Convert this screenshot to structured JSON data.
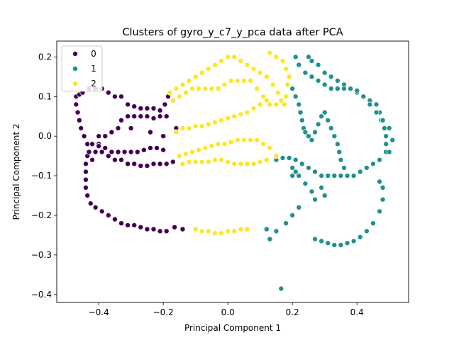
{
  "chart_data": {
    "type": "scatter",
    "title": "Clusters of gyro_y_c7_y_pca data after PCA",
    "xlabel": "Principal Component 1",
    "ylabel": "Principal Component 2",
    "xlim": [
      -0.53,
      0.56
    ],
    "ylim": [
      -0.42,
      0.24
    ],
    "xticks": [
      -0.4,
      -0.2,
      0.0,
      0.2,
      0.4
    ],
    "xtick_labels": [
      "−0.4",
      "−0.2",
      "0.0",
      "0.2",
      "0.4"
    ],
    "yticks": [
      -0.4,
      -0.3,
      -0.2,
      -0.1,
      0.0,
      0.1,
      0.2
    ],
    "ytick_labels": [
      "−0.4",
      "−0.3",
      "−0.2",
      "−0.1",
      "0.0",
      "0.1",
      "0.2"
    ],
    "grid": false,
    "legend_position": "top-left",
    "series": [
      {
        "name": "0",
        "color": "#440154",
        "points": [
          [
            -0.47,
            0.1
          ],
          [
            -0.47,
            0.08
          ],
          [
            -0.465,
            0.06
          ],
          [
            -0.46,
            0.04
          ],
          [
            -0.455,
            0.02
          ],
          [
            -0.445,
            0.0
          ],
          [
            -0.435,
            -0.02
          ],
          [
            -0.435,
            -0.05
          ],
          [
            -0.44,
            -0.07
          ],
          [
            -0.44,
            -0.09
          ],
          [
            -0.44,
            -0.11
          ],
          [
            -0.44,
            -0.13
          ],
          [
            -0.435,
            -0.15
          ],
          [
            -0.425,
            -0.17
          ],
          [
            -0.41,
            -0.18
          ],
          [
            -0.39,
            -0.19
          ],
          [
            -0.37,
            -0.2
          ],
          [
            -0.35,
            -0.21
          ],
          [
            -0.33,
            -0.22
          ],
          [
            -0.31,
            -0.225
          ],
          [
            -0.29,
            -0.225
          ],
          [
            -0.27,
            -0.23
          ],
          [
            -0.25,
            -0.235
          ],
          [
            -0.23,
            -0.235
          ],
          [
            -0.21,
            -0.24
          ],
          [
            -0.19,
            -0.24
          ],
          [
            -0.165,
            -0.23
          ],
          [
            -0.14,
            -0.235
          ],
          [
            -0.46,
            0.105
          ],
          [
            -0.45,
            0.11
          ],
          [
            -0.43,
            0.12
          ],
          [
            -0.41,
            0.12
          ],
          [
            -0.39,
            0.12
          ],
          [
            -0.37,
            0.11
          ],
          [
            -0.35,
            0.1
          ],
          [
            -0.33,
            0.1
          ],
          [
            -0.31,
            0.08
          ],
          [
            -0.29,
            0.075
          ],
          [
            -0.27,
            0.07
          ],
          [
            -0.25,
            0.07
          ],
          [
            -0.23,
            0.07
          ],
          [
            -0.21,
            0.065
          ],
          [
            -0.195,
            0.08
          ],
          [
            -0.185,
            0.1
          ],
          [
            -0.42,
            -0.02
          ],
          [
            -0.4,
            -0.02
          ],
          [
            -0.38,
            -0.03
          ],
          [
            -0.36,
            -0.04
          ],
          [
            -0.34,
            -0.04
          ],
          [
            -0.32,
            -0.04
          ],
          [
            -0.3,
            -0.04
          ],
          [
            -0.28,
            -0.04
          ],
          [
            -0.26,
            -0.035
          ],
          [
            -0.24,
            -0.03
          ],
          [
            -0.22,
            -0.03
          ],
          [
            -0.2,
            -0.035
          ],
          [
            -0.41,
            -0.04
          ],
          [
            -0.39,
            -0.04
          ],
          [
            -0.37,
            -0.05
          ],
          [
            -0.35,
            -0.06
          ],
          [
            -0.33,
            -0.06
          ],
          [
            -0.31,
            -0.07
          ],
          [
            -0.29,
            -0.07
          ],
          [
            -0.27,
            -0.075
          ],
          [
            -0.25,
            -0.075
          ],
          [
            -0.23,
            -0.07
          ],
          [
            -0.21,
            -0.07
          ],
          [
            -0.19,
            -0.07
          ],
          [
            -0.17,
            -0.065
          ],
          [
            -0.4,
            0.0
          ],
          [
            -0.38,
            0.0
          ],
          [
            -0.36,
            0.01
          ],
          [
            -0.34,
            0.02
          ],
          [
            -0.33,
            0.04
          ],
          [
            -0.31,
            0.05
          ],
          [
            -0.29,
            0.05
          ],
          [
            -0.27,
            0.05
          ],
          [
            -0.25,
            0.05
          ],
          [
            -0.23,
            0.045
          ],
          [
            -0.21,
            0.05
          ],
          [
            -0.19,
            0.05
          ],
          [
            -0.16,
            0.02
          ],
          [
            -0.2,
            0.0
          ],
          [
            -0.24,
            0.01
          ],
          [
            -0.3,
            0.02
          ],
          [
            -0.42,
            -0.06
          ],
          [
            -0.43,
            -0.04
          ],
          [
            -0.4,
            -0.025
          ]
        ]
      },
      {
        "name": "1",
        "color": "#21918c",
        "points": [
          [
            0.15,
            -0.06
          ],
          [
            0.17,
            -0.055
          ],
          [
            0.19,
            -0.055
          ],
          [
            0.21,
            -0.06
          ],
          [
            0.23,
            -0.07
          ],
          [
            0.25,
            -0.08
          ],
          [
            0.27,
            -0.09
          ],
          [
            0.29,
            -0.1
          ],
          [
            0.31,
            -0.1
          ],
          [
            0.33,
            -0.1
          ],
          [
            0.35,
            -0.1
          ],
          [
            0.37,
            -0.1
          ],
          [
            0.39,
            -0.1
          ],
          [
            0.41,
            -0.09
          ],
          [
            0.43,
            -0.08
          ],
          [
            0.45,
            -0.07
          ],
          [
            0.47,
            -0.06
          ],
          [
            0.49,
            -0.04
          ],
          [
            0.49,
            -0.02
          ],
          [
            0.49,
            0.0
          ],
          [
            0.485,
            0.02
          ],
          [
            0.475,
            0.04
          ],
          [
            0.47,
            0.06
          ],
          [
            0.46,
            0.08
          ],
          [
            0.44,
            0.09
          ],
          [
            0.42,
            0.1
          ],
          [
            0.4,
            0.11
          ],
          [
            0.38,
            0.12
          ],
          [
            0.36,
            0.13
          ],
          [
            0.34,
            0.14
          ],
          [
            0.32,
            0.15
          ],
          [
            0.3,
            0.16
          ],
          [
            0.28,
            0.18
          ],
          [
            0.26,
            0.19
          ],
          [
            0.25,
            0.2
          ],
          [
            0.21,
            0.2
          ],
          [
            0.22,
            0.18
          ],
          [
            0.24,
            0.16
          ],
          [
            0.26,
            0.15
          ],
          [
            0.28,
            0.14
          ],
          [
            0.3,
            0.13
          ],
          [
            0.32,
            0.12
          ],
          [
            0.34,
            0.12
          ],
          [
            0.36,
            0.12
          ],
          [
            0.38,
            0.12
          ],
          [
            0.4,
            0.115
          ],
          [
            0.42,
            0.1
          ],
          [
            0.44,
            0.08
          ],
          [
            0.46,
            0.06
          ],
          [
            0.48,
            0.04
          ],
          [
            0.5,
            0.02
          ],
          [
            0.51,
            -0.01
          ],
          [
            0.5,
            -0.04
          ],
          [
            0.2,
            0.12
          ],
          [
            0.21,
            0.1
          ],
          [
            0.22,
            0.08
          ],
          [
            0.225,
            0.06
          ],
          [
            0.23,
            0.04
          ],
          [
            0.235,
            0.02
          ],
          [
            0.24,
            0.01
          ],
          [
            0.25,
            0.0
          ],
          [
            0.26,
            -0.01
          ],
          [
            0.27,
            0.01
          ],
          [
            0.28,
            0.03
          ],
          [
            0.29,
            0.05
          ],
          [
            0.3,
            0.06
          ],
          [
            0.31,
            0.04
          ],
          [
            0.32,
            0.02
          ],
          [
            0.33,
            0.0
          ],
          [
            0.34,
            -0.02
          ],
          [
            0.345,
            -0.04
          ],
          [
            0.35,
            -0.06
          ],
          [
            0.36,
            -0.08
          ],
          [
            0.29,
            -0.13
          ],
          [
            0.3,
            -0.15
          ],
          [
            0.2,
            -0.08
          ],
          [
            0.22,
            -0.1
          ],
          [
            0.24,
            -0.12
          ],
          [
            0.26,
            -0.14
          ],
          [
            0.27,
            -0.16
          ],
          [
            0.22,
            -0.18
          ],
          [
            0.2,
            -0.2
          ],
          [
            0.18,
            -0.22
          ],
          [
            0.15,
            -0.24
          ],
          [
            0.13,
            -0.26
          ],
          [
            0.12,
            -0.235
          ],
          [
            0.27,
            -0.26
          ],
          [
            0.29,
            -0.265
          ],
          [
            0.31,
            -0.27
          ],
          [
            0.33,
            -0.275
          ],
          [
            0.35,
            -0.275
          ],
          [
            0.37,
            -0.27
          ],
          [
            0.39,
            -0.265
          ],
          [
            0.41,
            -0.255
          ],
          [
            0.43,
            -0.24
          ],
          [
            0.45,
            -0.22
          ],
          [
            0.47,
            -0.19
          ],
          [
            0.48,
            -0.16
          ],
          [
            0.48,
            -0.13
          ],
          [
            0.47,
            -0.115
          ],
          [
            0.165,
            -0.385
          ],
          [
            0.2,
            -0.1
          ],
          [
            0.21,
            -0.09
          ]
        ]
      },
      {
        "name": "2",
        "color": "#fde725",
        "points": [
          [
            -0.18,
            0.11
          ],
          [
            -0.16,
            0.12
          ],
          [
            -0.14,
            0.13
          ],
          [
            -0.12,
            0.14
          ],
          [
            -0.1,
            0.15
          ],
          [
            -0.08,
            0.16
          ],
          [
            -0.06,
            0.17
          ],
          [
            -0.04,
            0.18
          ],
          [
            -0.02,
            0.19
          ],
          [
            0.0,
            0.2
          ],
          [
            0.02,
            0.2
          ],
          [
            0.04,
            0.19
          ],
          [
            0.06,
            0.18
          ],
          [
            0.08,
            0.17
          ],
          [
            0.1,
            0.16
          ],
          [
            0.12,
            0.15
          ],
          [
            0.14,
            0.13
          ],
          [
            0.155,
            0.11
          ],
          [
            0.165,
            0.09
          ],
          [
            0.175,
            0.08
          ],
          [
            0.18,
            0.1
          ],
          [
            0.185,
            0.13
          ],
          [
            0.19,
            0.15
          ],
          [
            0.18,
            0.17
          ],
          [
            0.17,
            0.19
          ],
          [
            0.15,
            0.2
          ],
          [
            0.13,
            0.21
          ],
          [
            -0.17,
            0.09
          ],
          [
            -0.15,
            0.1
          ],
          [
            -0.13,
            0.11
          ],
          [
            -0.11,
            0.12
          ],
          [
            -0.09,
            0.12
          ],
          [
            -0.07,
            0.12
          ],
          [
            -0.05,
            0.12
          ],
          [
            -0.03,
            0.12
          ],
          [
            -0.01,
            0.13
          ],
          [
            0.01,
            0.14
          ],
          [
            0.03,
            0.14
          ],
          [
            0.05,
            0.14
          ],
          [
            0.07,
            0.14
          ],
          [
            0.09,
            0.12
          ],
          [
            0.11,
            0.1
          ],
          [
            0.13,
            0.08
          ],
          [
            -0.16,
            0.01
          ],
          [
            -0.14,
            0.02
          ],
          [
            -0.12,
            0.02
          ],
          [
            -0.1,
            0.025
          ],
          [
            -0.08,
            0.025
          ],
          [
            -0.06,
            0.03
          ],
          [
            -0.04,
            0.035
          ],
          [
            -0.02,
            0.04
          ],
          [
            0.0,
            0.045
          ],
          [
            0.02,
            0.05
          ],
          [
            0.04,
            0.055
          ],
          [
            0.06,
            0.06
          ],
          [
            0.08,
            0.07
          ],
          [
            0.1,
            0.08
          ],
          [
            0.12,
            0.09
          ],
          [
            0.15,
            0.08
          ],
          [
            -0.15,
            -0.05
          ],
          [
            -0.13,
            -0.045
          ],
          [
            -0.11,
            -0.04
          ],
          [
            -0.09,
            -0.035
          ],
          [
            -0.07,
            -0.03
          ],
          [
            -0.05,
            -0.025
          ],
          [
            -0.03,
            -0.02
          ],
          [
            -0.01,
            -0.02
          ],
          [
            0.01,
            -0.015
          ],
          [
            0.03,
            -0.01
          ],
          [
            0.05,
            -0.01
          ],
          [
            0.07,
            -0.01
          ],
          [
            0.09,
            -0.01
          ],
          [
            0.11,
            -0.02
          ],
          [
            0.13,
            -0.03
          ],
          [
            0.15,
            -0.05
          ],
          [
            -0.14,
            -0.07
          ],
          [
            -0.12,
            -0.065
          ],
          [
            -0.1,
            -0.065
          ],
          [
            -0.08,
            -0.065
          ],
          [
            -0.06,
            -0.065
          ],
          [
            -0.04,
            -0.06
          ],
          [
            -0.02,
            -0.06
          ],
          [
            0.0,
            -0.065
          ],
          [
            0.02,
            -0.07
          ],
          [
            0.04,
            -0.07
          ],
          [
            0.06,
            -0.07
          ],
          [
            0.08,
            -0.07
          ],
          [
            0.1,
            -0.065
          ],
          [
            0.12,
            -0.06
          ],
          [
            -0.1,
            -0.235
          ],
          [
            -0.08,
            -0.24
          ],
          [
            -0.06,
            -0.24
          ],
          [
            -0.04,
            -0.245
          ],
          [
            -0.02,
            -0.245
          ],
          [
            0.0,
            -0.24
          ],
          [
            0.02,
            -0.24
          ],
          [
            0.04,
            -0.235
          ],
          [
            0.06,
            -0.235
          ]
        ]
      }
    ]
  }
}
